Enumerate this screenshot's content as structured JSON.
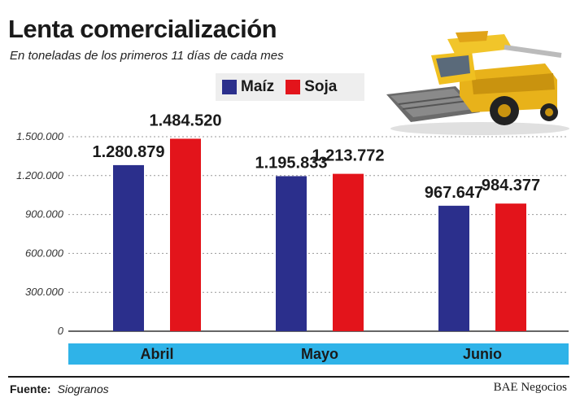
{
  "header": {
    "title": "Lenta comercialización",
    "subtitle": "En toneladas de los primeros 11 días de cada mes"
  },
  "footer": {
    "source_label": "Fuente:",
    "source_value": "Siogranos",
    "credit": "BAE Negocios"
  },
  "illustration": {
    "icon": "combine-harvester-icon"
  },
  "chart_data": {
    "type": "bar",
    "categories": [
      "Abril",
      "Mayo",
      "Junio"
    ],
    "series": [
      {
        "name": "Maíz",
        "values": [
          1280879,
          1195833,
          967647
        ],
        "labels": [
          "1.280.879",
          "1.195.833",
          "967.647"
        ],
        "color": "#2b2f8c"
      },
      {
        "name": "Soja",
        "values": [
          1484520,
          1213772,
          984377
        ],
        "labels": [
          "1.484.520",
          "1.213.772",
          "984.377"
        ],
        "color": "#e3141b"
      }
    ],
    "yticks": [
      0,
      300000,
      600000,
      900000,
      1200000,
      1500000
    ],
    "ytick_labels": [
      "0",
      "300.000",
      "600.000",
      "900.000",
      "1.200.000",
      "1.500.000"
    ],
    "ylim": [
      0,
      1500000
    ],
    "grid": true,
    "legend_position": "top",
    "category_band_color": "#2fb3e8"
  }
}
